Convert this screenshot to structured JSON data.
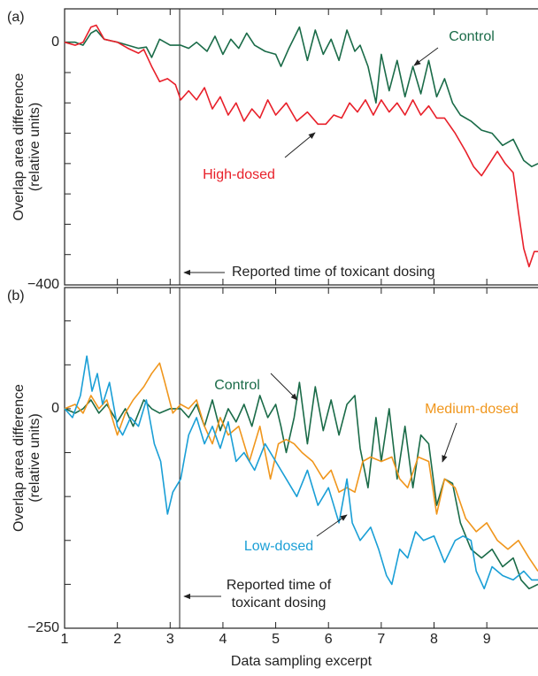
{
  "chart_data": [
    {
      "type": "line",
      "panel_label": "(a)",
      "ylabel": [
        "Overlap area difference",
        "(relative units)"
      ],
      "xlim": [
        1,
        9.97
      ],
      "ylim": [
        -400,
        55
      ],
      "yticks": [
        0,
        {
          "value": -400,
          "label": "−400"
        }
      ],
      "ytick_marks": [
        -50,
        -100,
        -150,
        -200,
        -250,
        -300,
        -350
      ],
      "xtick_marks": [
        2,
        3,
        4,
        5,
        6,
        7,
        8,
        9
      ],
      "event_x": 3.18,
      "annotations": [
        "Control",
        "High-dosed",
        "Reported time of toxicant dosing"
      ],
      "series": [
        {
          "name": "Control",
          "color": "#1a6b48",
          "x": [
            1,
            1.2,
            1.35,
            1.5,
            1.6,
            1.75,
            2,
            2.2,
            2.4,
            2.55,
            2.65,
            2.8,
            3.0,
            3.2,
            3.35,
            3.5,
            3.7,
            3.85,
            4.0,
            4.15,
            4.3,
            4.45,
            4.6,
            4.8,
            5.0,
            5.1,
            5.25,
            5.45,
            5.6,
            5.75,
            5.9,
            6.05,
            6.2,
            6.35,
            6.5,
            6.6,
            6.75,
            6.9,
            7.0,
            7.15,
            7.3,
            7.45,
            7.6,
            7.75,
            7.9,
            8.05,
            8.2,
            8.35,
            8.5,
            8.7,
            8.9,
            9.1,
            9.3,
            9.5,
            9.7,
            9.85,
            9.97
          ],
          "values": [
            0,
            0,
            -5,
            15,
            20,
            5,
            0,
            -5,
            -10,
            -8,
            -25,
            5,
            -5,
            -5,
            -10,
            0,
            -15,
            10,
            -20,
            5,
            -10,
            15,
            -5,
            -15,
            -20,
            -40,
            -10,
            25,
            -30,
            20,
            -20,
            5,
            -30,
            20,
            -15,
            -5,
            -40,
            -100,
            -20,
            -80,
            -30,
            -90,
            -40,
            -85,
            -30,
            -90,
            -60,
            -100,
            -120,
            -130,
            -145,
            -150,
            -170,
            -160,
            -195,
            -205,
            -200
          ]
        },
        {
          "name": "High-dosed",
          "color": "#e8202a",
          "x": [
            1,
            1.2,
            1.35,
            1.5,
            1.6,
            1.75,
            2,
            2.2,
            2.4,
            2.5,
            2.65,
            2.8,
            2.95,
            3.1,
            3.2,
            3.35,
            3.5,
            3.65,
            3.8,
            3.95,
            4.1,
            4.25,
            4.4,
            4.55,
            4.7,
            4.85,
            5.0,
            5.2,
            5.4,
            5.6,
            5.8,
            5.95,
            6.1,
            6.25,
            6.4,
            6.55,
            6.7,
            6.85,
            7.0,
            7.15,
            7.3,
            7.45,
            7.6,
            7.75,
            7.9,
            8.05,
            8.2,
            8.4,
            8.6,
            8.75,
            8.9,
            9.05,
            9.2,
            9.35,
            9.5,
            9.6,
            9.7,
            9.8,
            9.9,
            9.97
          ],
          "values": [
            0,
            -5,
            0,
            25,
            28,
            5,
            0,
            -10,
            -18,
            -12,
            -40,
            -65,
            -60,
            -70,
            -95,
            -80,
            -95,
            -75,
            -110,
            -90,
            -120,
            -100,
            -130,
            -110,
            -125,
            -95,
            -120,
            -100,
            -130,
            -115,
            -135,
            -135,
            -120,
            -125,
            -100,
            -115,
            -95,
            -120,
            -95,
            -115,
            -100,
            -120,
            -95,
            -120,
            -105,
            -125,
            -125,
            -150,
            -180,
            -205,
            -220,
            -200,
            -180,
            -200,
            -215,
            -280,
            -340,
            -370,
            -345,
            -345
          ]
        }
      ]
    },
    {
      "type": "line",
      "panel_label": "(b)",
      "ylabel": [
        "Overlap area difference",
        "(relative units)"
      ],
      "xlabel": "Data sampling excerpt",
      "xlim": [
        1,
        9.97
      ],
      "ylim": [
        -250,
        138
      ],
      "xticks": [
        1,
        2,
        3,
        4,
        5,
        6,
        7,
        8,
        9
      ],
      "yticks": [
        0,
        {
          "value": -250,
          "label": "−250"
        }
      ],
      "ytick_marks": [
        100,
        50,
        -50,
        -100,
        -150,
        -200
      ],
      "event_x": 3.18,
      "annotations": [
        "Control",
        "Medium-dosed",
        "Low-dosed",
        [
          "Reported time of",
          "toxicant dosing"
        ]
      ],
      "series": [
        {
          "name": "Control",
          "color": "#1a6b48",
          "x": [
            1,
            1.2,
            1.35,
            1.5,
            1.65,
            1.8,
            2.0,
            2.15,
            2.3,
            2.5,
            2.65,
            2.8,
            3.0,
            3.2,
            3.35,
            3.5,
            3.65,
            3.8,
            3.95,
            4.1,
            4.25,
            4.4,
            4.55,
            4.7,
            4.85,
            5.0,
            5.1,
            5.2,
            5.35,
            5.45,
            5.6,
            5.75,
            5.9,
            6.05,
            6.2,
            6.35,
            6.5,
            6.6,
            6.75,
            6.9,
            7.0,
            7.15,
            7.3,
            7.45,
            7.6,
            7.75,
            7.9,
            8.05,
            8.2,
            8.35,
            8.5,
            8.7,
            8.9,
            9.1,
            9.3,
            9.5,
            9.65,
            9.8,
            9.97
          ],
          "values": [
            0,
            -5,
            0,
            10,
            -5,
            5,
            -15,
            0,
            -20,
            10,
            0,
            -5,
            0,
            0,
            -10,
            5,
            -20,
            10,
            -25,
            0,
            -15,
            5,
            -20,
            15,
            -10,
            5,
            -20,
            -50,
            -10,
            30,
            -40,
            25,
            -25,
            10,
            -30,
            5,
            15,
            -45,
            -90,
            -10,
            -60,
            0,
            -80,
            -20,
            -90,
            -30,
            -40,
            -110,
            -80,
            -85,
            -130,
            -160,
            -170,
            -160,
            -180,
            -170,
            -195,
            -205,
            -200
          ]
        },
        {
          "name": "Medium-dosed",
          "color": "#f0961c",
          "x": [
            1,
            1.2,
            1.35,
            1.5,
            1.65,
            1.8,
            2.0,
            2.15,
            2.3,
            2.5,
            2.65,
            2.8,
            2.9,
            3.05,
            3.2,
            3.35,
            3.5,
            3.65,
            3.8,
            3.95,
            4.1,
            4.3,
            4.5,
            4.7,
            4.9,
            5.05,
            5.2,
            5.35,
            5.5,
            5.7,
            5.9,
            6.05,
            6.2,
            6.35,
            6.5,
            6.65,
            6.8,
            7.0,
            7.2,
            7.35,
            7.5,
            7.7,
            7.9,
            8.05,
            8.2,
            8.4,
            8.6,
            8.8,
            9.0,
            9.2,
            9.4,
            9.6,
            9.8,
            9.97
          ],
          "values": [
            0,
            5,
            -5,
            15,
            0,
            10,
            -30,
            -5,
            10,
            25,
            40,
            52,
            30,
            -5,
            5,
            0,
            10,
            -20,
            -40,
            -10,
            -30,
            -20,
            -60,
            -20,
            -80,
            -40,
            -35,
            -40,
            -50,
            -60,
            -80,
            -70,
            -95,
            -90,
            -95,
            -60,
            -55,
            -60,
            -55,
            -80,
            -90,
            -55,
            -60,
            -120,
            -80,
            -90,
            -125,
            -140,
            -130,
            -150,
            -160,
            -150,
            -170,
            -185
          ]
        },
        {
          "name": "Low-dosed",
          "color": "#1a9fd6",
          "x": [
            1,
            1.15,
            1.3,
            1.42,
            1.52,
            1.62,
            1.72,
            1.85,
            2.0,
            2.1,
            2.25,
            2.4,
            2.55,
            2.7,
            2.82,
            2.95,
            3.05,
            3.2,
            3.35,
            3.5,
            3.65,
            3.8,
            3.95,
            4.1,
            4.25,
            4.4,
            4.6,
            4.8,
            5.0,
            5.2,
            5.4,
            5.6,
            5.8,
            6.0,
            6.2,
            6.35,
            6.45,
            6.6,
            6.8,
            6.95,
            7.1,
            7.2,
            7.35,
            7.5,
            7.65,
            7.8,
            8.0,
            8.2,
            8.4,
            8.55,
            8.7,
            8.8,
            8.95,
            9.1,
            9.3,
            9.5,
            9.7,
            9.85,
            9.97
          ],
          "values": [
            0,
            -10,
            15,
            60,
            20,
            40,
            5,
            30,
            -20,
            -30,
            -10,
            -20,
            10,
            -40,
            -60,
            -120,
            -95,
            -80,
            -30,
            -10,
            -40,
            -20,
            -45,
            -15,
            -60,
            -50,
            -70,
            -40,
            -60,
            -80,
            -100,
            -70,
            -110,
            -90,
            -130,
            -80,
            -130,
            -150,
            -135,
            -160,
            -190,
            -200,
            -160,
            -170,
            -140,
            -150,
            -145,
            -175,
            -150,
            -145,
            -150,
            -185,
            -205,
            -180,
            -190,
            -195,
            -185,
            -195,
            -195
          ]
        }
      ]
    }
  ]
}
